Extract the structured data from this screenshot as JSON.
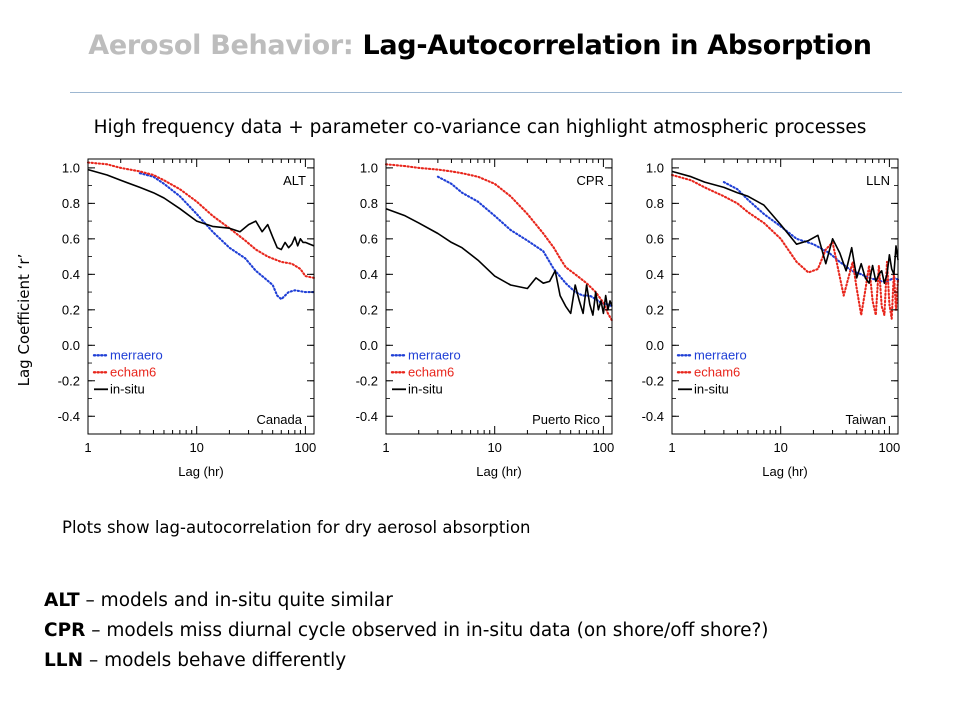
{
  "slide": {
    "title_prefix": "Aerosol Behavior:",
    "title_main": "Lag-Autocorrelation in Absorption",
    "subtitle": "High frequency data + parameter co-variance can highlight atmospheric processes",
    "ylabel": "Lag Coefficient ‘r’",
    "note": "Plots show lag-autocorrelation for dry aerosol absorption",
    "bullets": [
      {
        "term": "ALT",
        "text": " – models and in-situ quite similar"
      },
      {
        "term": "CPR",
        "text": " – models miss diurnal cycle observed in in-situ data (on shore/off shore?)"
      },
      {
        "term": "LLN",
        "text": " – models behave differently"
      }
    ]
  },
  "colors": {
    "merraero": "#1f3fd6",
    "echam6": "#e8261c",
    "insitu": "#000000",
    "title_prefix": "#bdbdbd"
  },
  "chart_data": [
    {
      "type": "line",
      "code": "ALT",
      "location": "Canada",
      "xlabel": "Lag (hr)",
      "ylabel": "",
      "xscale": "log",
      "xlim": [
        1,
        120
      ],
      "ylim": [
        -0.5,
        1.05
      ],
      "xticks": [
        "1",
        "10",
        "100"
      ],
      "yticks": [
        "1.0",
        "0.8",
        "0.6",
        "0.4",
        "0.2",
        "0.0",
        "-0.2",
        "-0.4"
      ],
      "legend_position": "bottom-left",
      "series": [
        {
          "name": "merraero",
          "style": "dotted",
          "x": [
            3,
            4,
            5,
            7,
            10,
            14,
            20,
            28,
            35,
            42,
            50,
            55,
            60,
            70,
            80,
            100,
            120
          ],
          "y": [
            0.97,
            0.95,
            0.91,
            0.84,
            0.74,
            0.64,
            0.55,
            0.49,
            0.42,
            0.38,
            0.34,
            0.28,
            0.26,
            0.3,
            0.31,
            0.3,
            0.3
          ]
        },
        {
          "name": "echam6",
          "style": "dotted",
          "x": [
            1,
            1.5,
            2,
            3,
            4,
            5,
            7,
            10,
            14,
            20,
            28,
            35,
            45,
            60,
            75,
            90,
            100,
            120
          ],
          "y": [
            1.03,
            1.02,
            1.0,
            0.98,
            0.96,
            0.93,
            0.88,
            0.81,
            0.73,
            0.66,
            0.59,
            0.54,
            0.5,
            0.47,
            0.46,
            0.43,
            0.39,
            0.38
          ]
        },
        {
          "name": "in-situ",
          "style": "solid",
          "x": [
            1,
            1.5,
            2,
            3,
            4,
            5,
            7,
            10,
            14,
            20,
            25,
            30,
            35,
            40,
            45,
            50,
            55,
            60,
            65,
            70,
            75,
            80,
            85,
            90,
            95,
            100,
            110,
            120
          ],
          "y": [
            0.99,
            0.96,
            0.93,
            0.89,
            0.86,
            0.83,
            0.77,
            0.7,
            0.67,
            0.66,
            0.64,
            0.68,
            0.7,
            0.64,
            0.68,
            0.61,
            0.55,
            0.54,
            0.58,
            0.55,
            0.57,
            0.61,
            0.56,
            0.6,
            0.58,
            0.58,
            0.57,
            0.56
          ]
        }
      ]
    },
    {
      "type": "line",
      "code": "CPR",
      "location": "Puerto Rico",
      "xlabel": "Lag (hr)",
      "ylabel": "",
      "xscale": "log",
      "xlim": [
        1,
        120
      ],
      "ylim": [
        -0.5,
        1.05
      ],
      "xticks": [
        "1",
        "10",
        "100"
      ],
      "yticks": [
        "1.0",
        "0.8",
        "0.6",
        "0.4",
        "0.2",
        "0.0",
        "-0.2",
        "-0.4"
      ],
      "legend_position": "bottom-left",
      "series": [
        {
          "name": "merraero",
          "style": "dotted",
          "x": [
            3,
            4,
            5,
            7,
            10,
            14,
            20,
            28,
            35,
            45,
            55,
            65,
            75,
            85,
            95,
            110,
            120
          ],
          "y": [
            0.95,
            0.91,
            0.86,
            0.81,
            0.73,
            0.65,
            0.59,
            0.53,
            0.43,
            0.35,
            0.3,
            0.28,
            0.28,
            0.26,
            0.24,
            0.23,
            0.22
          ]
        },
        {
          "name": "echam6",
          "style": "dotted",
          "x": [
            1,
            1.5,
            2,
            3,
            4,
            5,
            7,
            10,
            14,
            20,
            28,
            35,
            40,
            45,
            55,
            70,
            85,
            100,
            110,
            120
          ],
          "y": [
            1.02,
            1.01,
            1.0,
            0.99,
            0.98,
            0.97,
            0.95,
            0.91,
            0.84,
            0.74,
            0.63,
            0.55,
            0.49,
            0.44,
            0.4,
            0.35,
            0.3,
            0.24,
            0.18,
            0.14
          ]
        },
        {
          "name": "in-situ",
          "style": "solid",
          "x": [
            1,
            1.5,
            2,
            3,
            4,
            5,
            7,
            10,
            14,
            20,
            24,
            28,
            32,
            36,
            40,
            45,
            50,
            55,
            60,
            65,
            70,
            75,
            80,
            85,
            90,
            95,
            100,
            105,
            110,
            115,
            120
          ],
          "y": [
            0.77,
            0.73,
            0.69,
            0.63,
            0.58,
            0.55,
            0.48,
            0.39,
            0.34,
            0.32,
            0.38,
            0.35,
            0.36,
            0.42,
            0.28,
            0.22,
            0.18,
            0.34,
            0.25,
            0.18,
            0.34,
            0.23,
            0.17,
            0.3,
            0.2,
            0.25,
            0.18,
            0.28,
            0.2,
            0.25,
            0.22
          ]
        }
      ]
    },
    {
      "type": "line",
      "code": "LLN",
      "location": "Taiwan",
      "xlabel": "Lag (hr)",
      "ylabel": "",
      "xscale": "log",
      "xlim": [
        1,
        120
      ],
      "ylim": [
        -0.5,
        1.05
      ],
      "xticks": [
        "1",
        "10",
        "100"
      ],
      "yticks": [
        "1.0",
        "0.8",
        "0.6",
        "0.4",
        "0.2",
        "0.0",
        "-0.2",
        "-0.4"
      ],
      "legend_position": "bottom-left",
      "series": [
        {
          "name": "merraero",
          "style": "dotted",
          "x": [
            3,
            4,
            5,
            7,
            10,
            14,
            20,
            28,
            35,
            45,
            55,
            65,
            75,
            85,
            95,
            110,
            120
          ],
          "y": [
            0.92,
            0.88,
            0.82,
            0.74,
            0.67,
            0.6,
            0.57,
            0.52,
            0.47,
            0.42,
            0.4,
            0.38,
            0.37,
            0.36,
            0.36,
            0.38,
            0.37
          ]
        },
        {
          "name": "echam6",
          "style": "dotted",
          "x": [
            1,
            1.5,
            2,
            3,
            4,
            5,
            7,
            10,
            14,
            18,
            22,
            26,
            30,
            34,
            38,
            42,
            46,
            50,
            55,
            60,
            65,
            70,
            75,
            80,
            85,
            90,
            95,
            100,
            105,
            110,
            115,
            120
          ],
          "y": [
            0.96,
            0.93,
            0.89,
            0.84,
            0.8,
            0.75,
            0.69,
            0.6,
            0.47,
            0.41,
            0.43,
            0.54,
            0.58,
            0.42,
            0.28,
            0.38,
            0.47,
            0.32,
            0.17,
            0.31,
            0.45,
            0.25,
            0.17,
            0.45,
            0.22,
            0.17,
            0.47,
            0.23,
            0.15,
            0.41,
            0.2,
            0.37
          ]
        },
        {
          "name": "in-situ",
          "style": "solid",
          "x": [
            1,
            1.5,
            2,
            3,
            4,
            5,
            7,
            10,
            14,
            18,
            22,
            26,
            30,
            35,
            40,
            45,
            50,
            55,
            60,
            65,
            70,
            75,
            80,
            85,
            90,
            95,
            100,
            105,
            110,
            115,
            120
          ],
          "y": [
            0.98,
            0.95,
            0.92,
            0.89,
            0.86,
            0.84,
            0.79,
            0.68,
            0.57,
            0.59,
            0.62,
            0.46,
            0.6,
            0.52,
            0.42,
            0.55,
            0.38,
            0.46,
            0.38,
            0.35,
            0.45,
            0.36,
            0.4,
            0.42,
            0.35,
            0.4,
            0.51,
            0.43,
            0.4,
            0.56,
            0.48
          ]
        }
      ]
    }
  ]
}
